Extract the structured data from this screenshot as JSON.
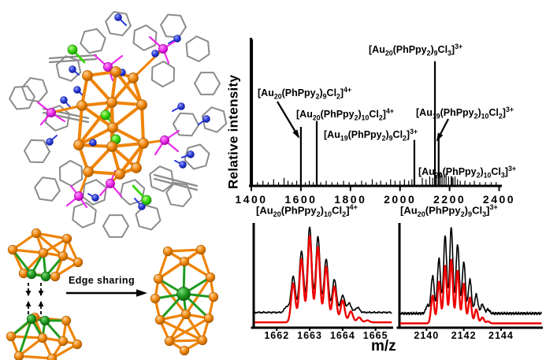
{
  "figure": {
    "ylabel": "Relative intensity",
    "xlabel": "m/z",
    "edge_sharing_label": "Edge sharing"
  },
  "colors": {
    "gold": "#ef8408",
    "gold_highlight": "#ffd29a",
    "gold_dark": "#a85a00",
    "phosphorus_magenta": "#ea2bea",
    "nitrogen_blue": "#2b3bdd",
    "chlorine_green": "#37d60f",
    "shared_edge_green": "#1f9b1f",
    "carbon_gray": "#8b8b8b",
    "axis_black": "#000000",
    "simulated_red": "#ee0000"
  },
  "chart_data": [
    {
      "type": "line",
      "name": "ESI-MS full spectrum",
      "xlabel": "m/z",
      "ylabel": "Relative intensity",
      "xlim": [
        1400,
        2400
      ],
      "xticks": [
        "1400",
        "1600",
        "1800",
        "2000",
        "2200",
        "2400"
      ],
      "grid": false,
      "legend_position": "none",
      "peaks": [
        {
          "mz": 1403,
          "rel": 100,
          "label": null
        },
        {
          "mz": 1600,
          "rel": 40,
          "label": "[Au_{20}(PhPpy_{2})_{9}Cl_{2}]^{4+}"
        },
        {
          "mz": 1664,
          "rel": 44,
          "label": "[Au_{20}(PhPpy_{2})_{10}Cl_{2}]^{4+}"
        },
        {
          "mz": 2058,
          "rel": 31,
          "label": "[Au_{19}(PhPpy_{2})_{9}Cl_{2}]^{3+}"
        },
        {
          "mz": 2141,
          "rel": 85,
          "label": "[Au_{20}(PhPpy_{2})_{9}Cl_{3}]^{3+}"
        },
        {
          "mz": 2156,
          "rel": 34,
          "label": "[Au_{19}(PhPpy_{2})_{10}Cl_{2}]^{3+}"
        },
        {
          "mz": 2208,
          "rel": 6,
          "label": "[Au_{20}(PhPpy_{2})_{10}Cl_{3}]^{3+}"
        }
      ],
      "noise": [
        [
          1425,
          2
        ],
        [
          1447,
          3
        ],
        [
          1468,
          2
        ],
        [
          1490,
          4
        ],
        [
          1510,
          2
        ],
        [
          1532,
          5
        ],
        [
          1548,
          3
        ],
        [
          1565,
          2
        ],
        [
          1583,
          3
        ],
        [
          1618,
          2
        ],
        [
          1634,
          3
        ],
        [
          1650,
          2
        ],
        [
          1680,
          2
        ],
        [
          1702,
          3
        ],
        [
          1725,
          2
        ],
        [
          1748,
          2
        ],
        [
          1772,
          3
        ],
        [
          1795,
          2
        ],
        [
          1820,
          2
        ],
        [
          1845,
          3
        ],
        [
          1862,
          2
        ],
        [
          1888,
          4
        ],
        [
          1905,
          2
        ],
        [
          1922,
          3
        ],
        [
          1945,
          2
        ],
        [
          1962,
          4
        ],
        [
          1980,
          3
        ],
        [
          2000,
          3
        ],
        [
          2018,
          4
        ],
        [
          2035,
          3
        ],
        [
          2048,
          4
        ],
        [
          2090,
          5
        ],
        [
          2105,
          4
        ],
        [
          2120,
          6
        ],
        [
          2132,
          5
        ],
        [
          2147,
          7
        ],
        [
          2163,
          9
        ],
        [
          2170,
          7
        ],
        [
          2178,
          6
        ],
        [
          2186,
          8
        ],
        [
          2196,
          6
        ],
        [
          2214,
          5
        ],
        [
          2222,
          6
        ],
        [
          2232,
          4
        ],
        [
          2243,
          3
        ],
        [
          2262,
          3
        ],
        [
          2282,
          2
        ],
        [
          2300,
          3
        ],
        [
          2322,
          2
        ],
        [
          2345,
          2
        ],
        [
          2368,
          2
        ],
        [
          2388,
          2
        ]
      ]
    },
    {
      "type": "line",
      "name": "isotope pattern inset left",
      "title": "[Au_{20}(PhPpy_{2})_{10}Cl_{2}]^{4+}",
      "xlim": [
        1661.3,
        1665.5
      ],
      "xticks": [
        "1662",
        "1663",
        "1664",
        "1665"
      ],
      "series": [
        {
          "name": "black trace",
          "color": "#000000",
          "baseline": 13,
          "sigma": 0.09,
          "noise": 0.8,
          "peaks": [
            [
              1662.3,
              6
            ],
            [
              1662.5,
              36
            ],
            [
              1662.75,
              62
            ],
            [
              1663,
              86
            ],
            [
              1663.25,
              76
            ],
            [
              1663.5,
              54
            ],
            [
              1663.75,
              33
            ],
            [
              1664,
              17
            ],
            [
              1664.2,
              9
            ],
            [
              1664.45,
              5
            ]
          ]
        },
        {
          "name": "red trace",
          "color": "#ee0000",
          "baseline": 3,
          "sigma": 0.09,
          "noise": 0,
          "peaks": [
            [
              1662.5,
              39
            ],
            [
              1662.75,
              64
            ],
            [
              1663,
              87
            ],
            [
              1663.25,
              76
            ],
            [
              1663.5,
              56
            ],
            [
              1663.75,
              36
            ],
            [
              1664,
              22
            ],
            [
              1664.25,
              11
            ],
            [
              1664.5,
              5
            ],
            [
              1664.75,
              2
            ]
          ]
        }
      ]
    },
    {
      "type": "line",
      "name": "isotope pattern inset right",
      "title": "[Au_{20}(PhPpy_{2})_{9}Cl_{3}]^{3+}",
      "xlim": [
        2138.55,
        2146.2
      ],
      "xticks": [
        "2140",
        "2142",
        "2144"
      ],
      "series": [
        {
          "name": "black trace",
          "color": "#000000",
          "baseline": 12,
          "sigma": 0.12,
          "noise": 1.4,
          "peaks": [
            [
              2140.05,
              8
            ],
            [
              2140.33,
              38
            ],
            [
              2140.67,
              55
            ],
            [
              2141,
              78
            ],
            [
              2141.33,
              87
            ],
            [
              2141.67,
              70
            ],
            [
              2142,
              52
            ],
            [
              2142.33,
              34
            ],
            [
              2142.67,
              19
            ],
            [
              2143,
              9
            ],
            [
              2143.3,
              4
            ]
          ]
        },
        {
          "name": "red trace",
          "color": "#ee0000",
          "baseline": 2,
          "sigma": 0.12,
          "noise": 0,
          "peaks": [
            [
              2140.33,
              28
            ],
            [
              2140.67,
              42
            ],
            [
              2141,
              58
            ],
            [
              2141.33,
              64
            ],
            [
              2141.67,
              53
            ],
            [
              2142,
              40
            ],
            [
              2142.33,
              26
            ],
            [
              2142.67,
              14
            ],
            [
              2143,
              6
            ],
            [
              2143.3,
              2
            ]
          ]
        }
      ]
    }
  ]
}
